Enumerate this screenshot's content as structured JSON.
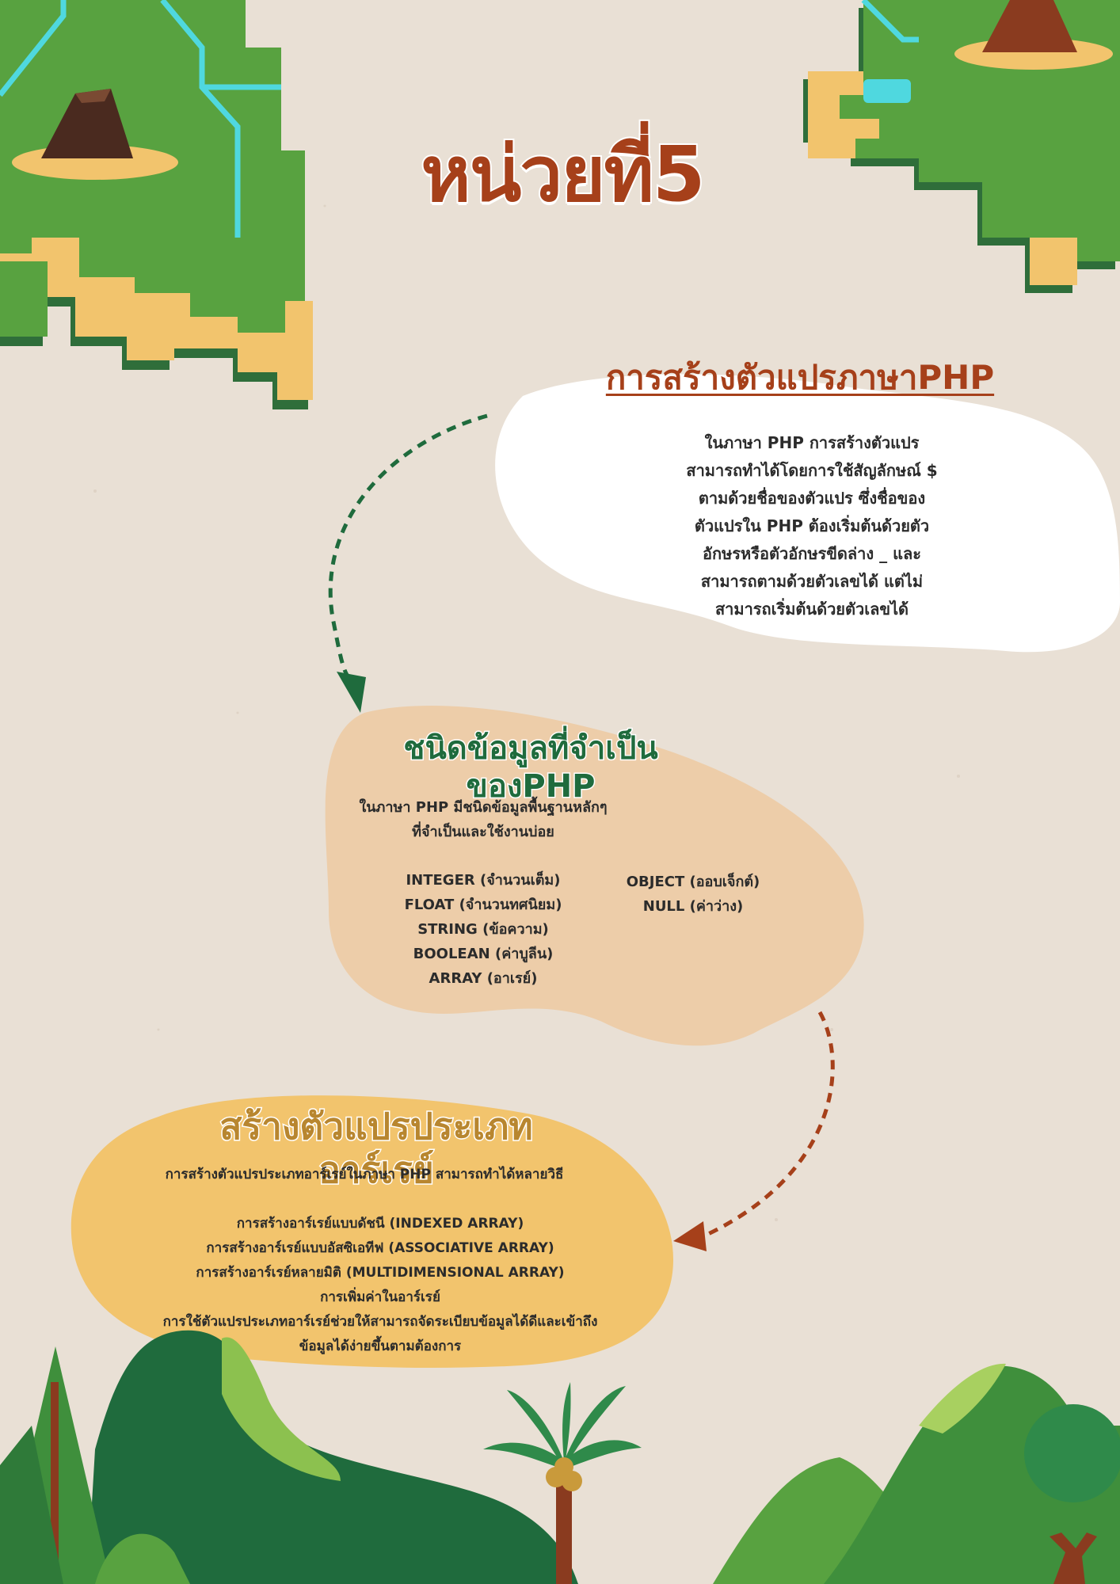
{
  "header": {
    "title": "หน่วยที่5"
  },
  "section_variables": {
    "heading": "การสร้างตัวแปรภาษาPHP",
    "lines": [
      "ในภาษา PHP การสร้างตัวแปร",
      "สามารถทำได้โดยการใช้สัญลักษณ์ $",
      "ตามด้วยชื่อของตัวแปร ซึ่งชื่อของ",
      "ตัวแปรใน PHP ต้องเริ่มต้นด้วยตัว",
      "อักษรหรือตัวอักษรขีดล่าง _ และ",
      "สามารถตามด้วยตัวเลขได้ แต่ไม่",
      "สามารถเริ่มต้นด้วยตัวเลขได้"
    ]
  },
  "section_datatypes": {
    "heading": "ชนิดข้อมูลที่จำเป็นของPHP",
    "intro_lines": [
      "ในภาษา PHP มีชนิดข้อมูลพื้นฐานหลักๆ",
      "ที่จำเป็นและใช้งานบ่อย"
    ],
    "types_left": [
      "INTEGER (จำนวนเต็ม)",
      "FLOAT (จำนวนทศนิยม)",
      "STRING (ข้อความ)",
      "BOOLEAN (ค่าบูลีน)",
      "ARRAY (อาเรย์)"
    ],
    "types_right": [
      "OBJECT (ออบเจ็กต์)",
      "NULL (ค่าว่าง)"
    ]
  },
  "section_arrays": {
    "heading": "สร้างตัวแปรประเภทอาร์เรย์",
    "intro": "การสร้างตัวแปรประเภทอาร์เรย์ในภาษา PHP สามารถทำได้หลายวิธี",
    "items": [
      "การสร้างอาร์เรย์แบบดัชนี (INDEXED ARRAY)",
      "การสร้างอาร์เรย์แบบอัสซิเอทีฟ (ASSOCIATIVE ARRAY)",
      "การสร้างอาร์เรย์หลายมิติ (MULTIDIMENSIONAL ARRAY)",
      "การเพิ่มค่าในอาร์เรย์",
      "การใช้ตัวแปรประเภทอาร์เรย์ช่วยให้สามารถจัดระเบียบข้อมูลได้ดีและเข้าถึง",
      "ข้อมูลได้ง่ายขึ้นตามต้องการ"
    ]
  },
  "colors": {
    "paper": "#e9e0d5",
    "rust": "#a6401a",
    "forest_green": "#1f6b3d",
    "leaf_green": "#4f9a3a",
    "sand": "#f2c46d",
    "peach": "#edcda9",
    "turquoise": "#4fd8df"
  }
}
